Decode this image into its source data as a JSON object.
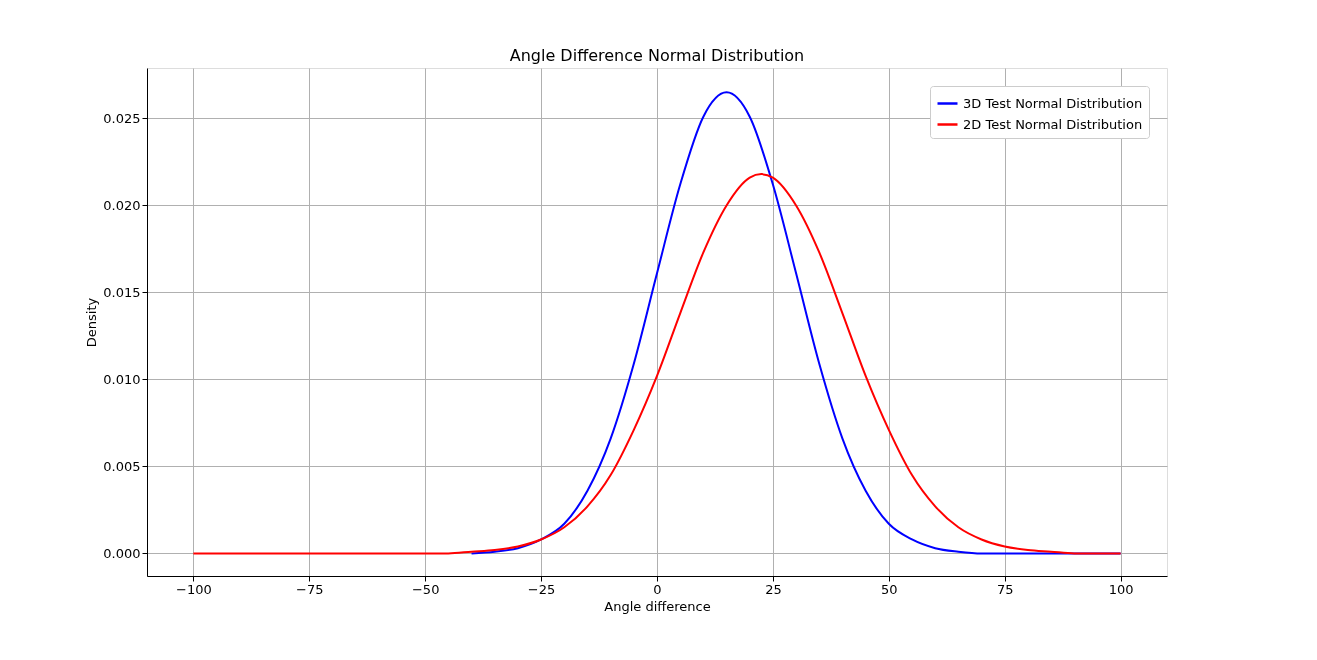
{
  "chart_data": {
    "type": "line",
    "title": "Angle Difference Normal Distribution",
    "xlabel": "Angle difference",
    "ylabel": "Density",
    "xlim": [
      -110,
      110
    ],
    "ylim": [
      -0.0013,
      0.0279
    ],
    "xticks": [
      {
        "value": -100,
        "label": "−100"
      },
      {
        "value": -75,
        "label": "−75"
      },
      {
        "value": -50,
        "label": "−50"
      },
      {
        "value": -25,
        "label": "−25"
      },
      0,
      25,
      50,
      75,
      100
    ],
    "yticks": [
      {
        "value": 0,
        "label": "0.000"
      },
      {
        "value": 0.005,
        "label": "0.005"
      },
      {
        "value": 0.01,
        "label": "0.010"
      },
      {
        "value": 0.015,
        "label": "0.015"
      },
      {
        "value": 0.02,
        "label": "0.020"
      },
      {
        "value": 0.025,
        "label": "0.025"
      }
    ],
    "grid": true,
    "legend": "top right",
    "marker": "none",
    "line_style": "solid",
    "series": [
      {
        "name": "3D Test Normal Distribution",
        "color": "#0000ff",
        "x": [
          -40,
          -35,
          -30,
          -25,
          -20,
          -15,
          -10,
          -5,
          0,
          5,
          10,
          15,
          20,
          25,
          30,
          35,
          40,
          45,
          50,
          55,
          60,
          65,
          70,
          75,
          100
        ],
        "values": [
          0,
          0.0001,
          0.0003,
          0.0008,
          0.0017,
          0.0036,
          0.0066,
          0.0109,
          0.0161,
          0.0212,
          0.0251,
          0.0265,
          0.0251,
          0.0212,
          0.0161,
          0.0109,
          0.0066,
          0.0036,
          0.0017,
          0.0008,
          0.0003,
          0.0001,
          0,
          0,
          0
        ]
      },
      {
        "name": "2D Test Normal Distribution",
        "color": "#ff0000",
        "x": [
          -100,
          -60,
          -45,
          -40,
          -35,
          -30,
          -25,
          -20,
          -15,
          -10,
          -5,
          0,
          5,
          10,
          15,
          20,
          22.5,
          25,
          30,
          35,
          40,
          45,
          50,
          55,
          60,
          65,
          70,
          75,
          80,
          85,
          90,
          100
        ],
        "values": [
          0,
          0,
          0,
          0.0001,
          0.0002,
          0.0004,
          0.0008,
          0.0015,
          0.0027,
          0.0045,
          0.0071,
          0.0102,
          0.0138,
          0.0173,
          0.02,
          0.0216,
          0.0218,
          0.0216,
          0.02,
          0.0173,
          0.0138,
          0.0102,
          0.0071,
          0.0045,
          0.0027,
          0.0015,
          0.0008,
          0.0004,
          0.0002,
          0.0001,
          0,
          0
        ]
      }
    ]
  }
}
